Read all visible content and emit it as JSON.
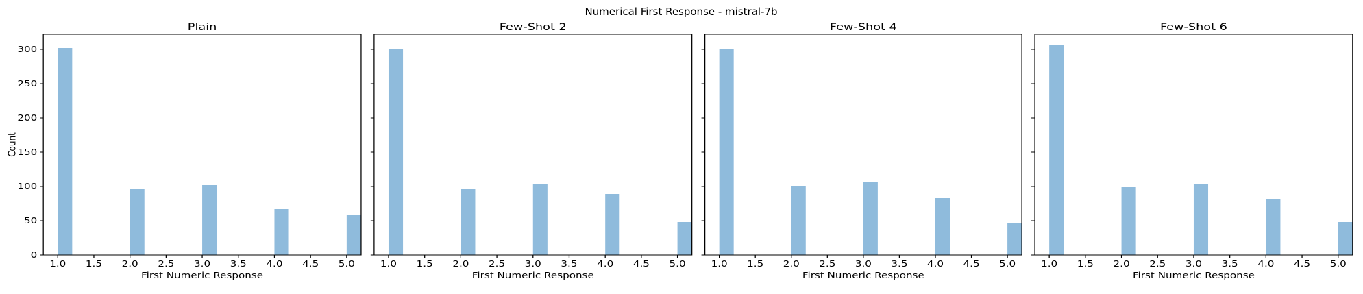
{
  "figure": {
    "title": "Numerical First Response - mistral-7b"
  },
  "chart_data": [
    {
      "type": "bar",
      "title": "Plain",
      "xlabel": "First Numeric Response",
      "ylabel": "Count",
      "x": [
        1.0,
        2.0,
        3.0,
        4.0,
        5.0
      ],
      "values": [
        302,
        96,
        102,
        67,
        58
      ],
      "xlim": [
        0.8,
        5.2
      ],
      "ylim": [
        0,
        322
      ],
      "xticks": [
        "1.0",
        "1.5",
        "2.0",
        "2.5",
        "3.0",
        "3.5",
        "4.0",
        "4.5",
        "5.0"
      ],
      "yticks": [
        "0",
        "50",
        "100",
        "150",
        "200",
        "250",
        "300"
      ],
      "bar_color": "#8fbbdc",
      "grid": false
    },
    {
      "type": "bar",
      "title": "Few-Shot 2",
      "xlabel": "First Numeric Response",
      "ylabel": "",
      "x": [
        1.0,
        2.0,
        3.0,
        4.0,
        5.0
      ],
      "values": [
        300,
        96,
        103,
        89,
        48
      ],
      "xlim": [
        0.8,
        5.2
      ],
      "ylim": [
        0,
        322
      ],
      "xticks": [
        "1.0",
        "1.5",
        "2.0",
        "2.5",
        "3.0",
        "3.5",
        "4.0",
        "4.5",
        "5.0"
      ],
      "yticks": [
        "0",
        "50",
        "100",
        "150",
        "200",
        "250",
        "300"
      ],
      "bar_color": "#8fbbdc",
      "grid": false
    },
    {
      "type": "bar",
      "title": "Few-Shot 4",
      "xlabel": "First Numeric Response",
      "ylabel": "",
      "x": [
        1.0,
        2.0,
        3.0,
        4.0,
        5.0
      ],
      "values": [
        301,
        101,
        107,
        83,
        47
      ],
      "xlim": [
        0.8,
        5.2
      ],
      "ylim": [
        0,
        322
      ],
      "xticks": [
        "1.0",
        "1.5",
        "2.0",
        "2.5",
        "3.0",
        "3.5",
        "4.0",
        "4.5",
        "5.0"
      ],
      "yticks": [
        "0",
        "50",
        "100",
        "150",
        "200",
        "250",
        "300"
      ],
      "bar_color": "#8fbbdc",
      "grid": false
    },
    {
      "type": "bar",
      "title": "Few-Shot 6",
      "xlabel": "First Numeric Response",
      "ylabel": "",
      "x": [
        1.0,
        2.0,
        3.0,
        4.0,
        5.0
      ],
      "values": [
        307,
        99,
        103,
        81,
        48
      ],
      "xlim": [
        0.8,
        5.2
      ],
      "ylim": [
        0,
        322
      ],
      "xticks": [
        "1.0",
        "1.5",
        "2.0",
        "2.5",
        "3.0",
        "3.5",
        "4.0",
        "4.5",
        "5.0"
      ],
      "yticks": [
        "0",
        "50",
        "100",
        "150",
        "200",
        "250",
        "300"
      ],
      "bar_color": "#8fbbdc",
      "grid": false
    }
  ]
}
